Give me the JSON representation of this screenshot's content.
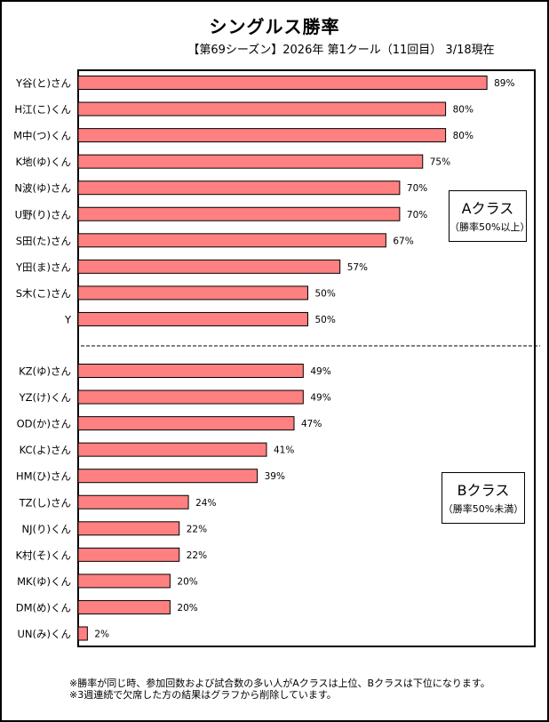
{
  "chart_data": {
    "type": "bar",
    "orientation": "horizontal",
    "title": "シングルス勝率",
    "subtitle": "【第69シーズン】2026年 第1クール（11回目） 3/18現在",
    "xlim": [
      0,
      100
    ],
    "value_suffix": "%",
    "bar_color": "#ff8080",
    "categories": [
      "Y谷(と)さん",
      "H江(こ)くん",
      "M中(つ)くん",
      "K地(ゆ)くん",
      "N波(ゆ)さん",
      "U野(り)さん",
      "S田(た)さん",
      "Y田(ま)さん",
      "S木(こ)さん",
      "Y",
      "KZ(ゆ)さん",
      "YZ(け)くん",
      "OD(か)さん",
      "KC(よ)さん",
      "HM(ひ)さん",
      "TZ(し)さん",
      "NJ(り)くん",
      "K村(そ)くん",
      "MK(ゆ)くん",
      "DM(め)くん",
      "UN(み)くん"
    ],
    "values": [
      89,
      80,
      80,
      75,
      70,
      70,
      67,
      57,
      50,
      50,
      49,
      49,
      47,
      41,
      39,
      24,
      22,
      22,
      20,
      20,
      2
    ],
    "value_labels": [
      "89%",
      "80%",
      "80%",
      "75%",
      "70%",
      "70%",
      "67%",
      "57%",
      "50%",
      "50%",
      "49%",
      "49%",
      "47%",
      "41%",
      "39%",
      "24%",
      "22%",
      "22%",
      "20%",
      "20%",
      "2%"
    ],
    "divider_after_index": 9,
    "groups": [
      {
        "name": "Aクラス",
        "note": "（勝率50%以上）"
      },
      {
        "name": "Bクラス",
        "note": "（勝率50%未満）"
      }
    ]
  },
  "notes": [
    "※勝率が同じ時、参加回数および試合数の多い人がAクラスは上位、Bクラスは下位になります。",
    "※3週連続で欠席した方の結果はグラフから削除しています。"
  ]
}
